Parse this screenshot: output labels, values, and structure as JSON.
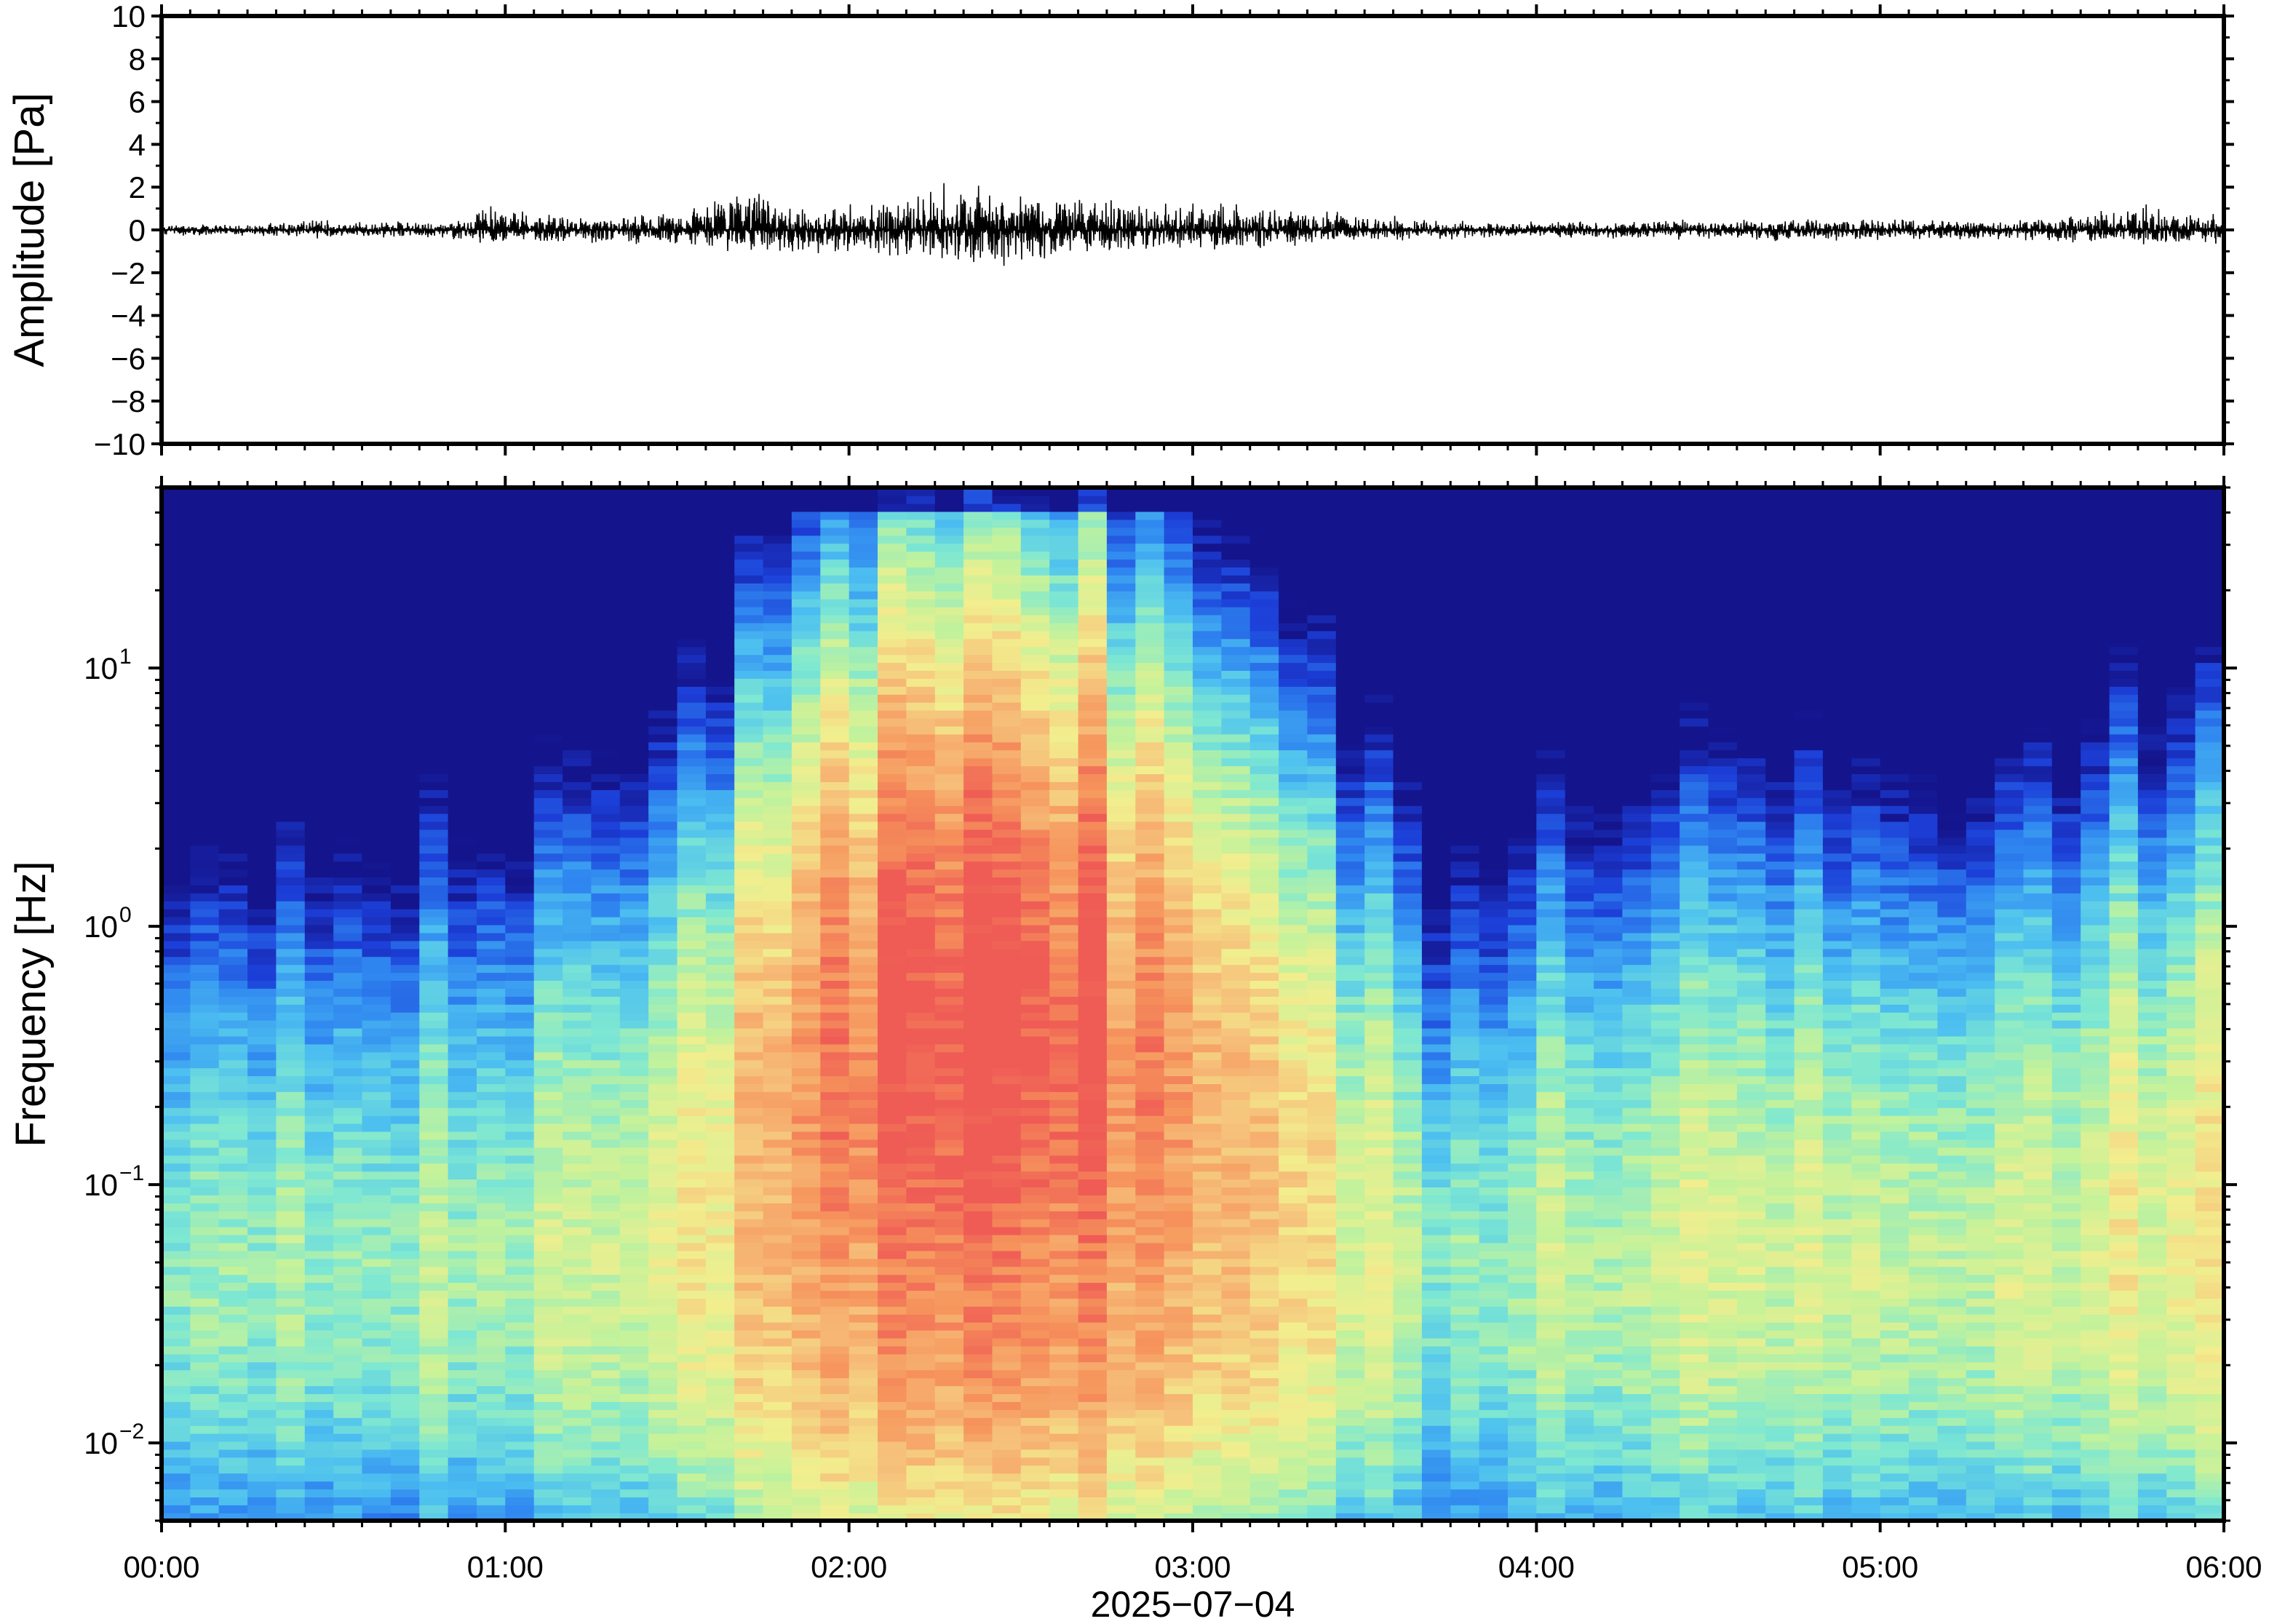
{
  "chart_data": [
    {
      "type": "line",
      "panel": "waveform",
      "ylabel": "Amplitude [Pa]",
      "xlabel": "",
      "ylim": [
        -10,
        10
      ],
      "y_ticks": [
        10,
        8,
        6,
        4,
        2,
        0,
        -2,
        -4,
        -6,
        -8,
        -10
      ],
      "y_tick_labels": [
        "10",
        "8",
        "6",
        "4",
        "2",
        "0",
        "−2",
        "−4",
        "−6",
        "−8",
        "−10"
      ],
      "x_range_hours": [
        0,
        6
      ],
      "series": [
        {
          "color": "#000000",
          "envelope_x_hours": [
            0,
            0.3,
            0.45,
            0.5,
            0.9,
            0.92,
            1.2,
            1.5,
            1.72,
            1.8,
            2.0,
            2.2,
            2.35,
            2.4,
            2.6,
            2.7,
            2.8,
            3.0,
            3.1,
            3.3,
            3.5,
            3.7,
            4.0,
            4.5,
            5.0,
            5.5,
            5.75,
            5.9,
            6.0
          ],
          "envelope_upper": [
            0.3,
            0.3,
            0.7,
            0.4,
            0.5,
            1.4,
            0.6,
            0.9,
            2.5,
            1.2,
            1.4,
            1.8,
            2.8,
            2.2,
            1.8,
            2.1,
            1.5,
            1.4,
            1.3,
            1.0,
            0.9,
            0.5,
            0.4,
            0.5,
            0.6,
            0.6,
            1.3,
            0.8,
            1.0
          ],
          "envelope_lower": [
            -0.3,
            -0.3,
            -0.5,
            -0.4,
            -0.5,
            -0.8,
            -0.6,
            -0.8,
            -1.2,
            -1.1,
            -1.2,
            -1.6,
            -2.4,
            -2.0,
            -1.4,
            -1.3,
            -1.1,
            -1.0,
            -1.2,
            -0.8,
            -0.7,
            -0.5,
            -0.4,
            -0.5,
            -0.6,
            -0.6,
            -0.8,
            -0.8,
            -0.9
          ]
        }
      ]
    },
    {
      "type": "heatmap",
      "panel": "spectrogram",
      "ylabel": "Frequency [Hz]",
      "xlabel": "2025−07−04",
      "y_scale": "log",
      "ylim": [
        0.005,
        50
      ],
      "y_ticks": [
        0.01,
        0.1,
        1,
        10
      ],
      "y_tick_labels": [
        {
          "base": "10",
          "exp": "−2"
        },
        {
          "base": "10",
          "exp": "−1"
        },
        {
          "base": "10",
          "exp": "0"
        },
        {
          "base": "10",
          "exp": "1"
        }
      ],
      "x_range_hours": [
        0,
        6
      ],
      "x_ticks_hours": [
        0,
        1,
        2,
        3,
        4,
        5,
        6
      ],
      "x_tick_labels": [
        "00:00",
        "01:00",
        "02:00",
        "03:00",
        "04:00",
        "05:00",
        "06:00"
      ],
      "colormap": [
        "#14148c",
        "#1c3fd8",
        "#2f86f0",
        "#4dc0f0",
        "#7ee8d2",
        "#c4f29a",
        "#f2ee8e",
        "#f6c07a",
        "#f6945c",
        "#ef5b55"
      ],
      "activity_profile_hours": [
        0,
        0.5,
        1.0,
        1.5,
        1.8,
        2.1,
        2.35,
        2.6,
        3.0,
        3.3,
        3.55,
        3.7,
        3.9,
        4.3,
        4.8,
        5.3,
        5.7,
        6.0
      ],
      "activity_profile_level": [
        0.25,
        0.3,
        0.28,
        0.5,
        0.72,
        0.88,
        1.0,
        0.95,
        0.75,
        0.6,
        0.42,
        0.18,
        0.3,
        0.38,
        0.42,
        0.4,
        0.48,
        0.5
      ]
    }
  ]
}
